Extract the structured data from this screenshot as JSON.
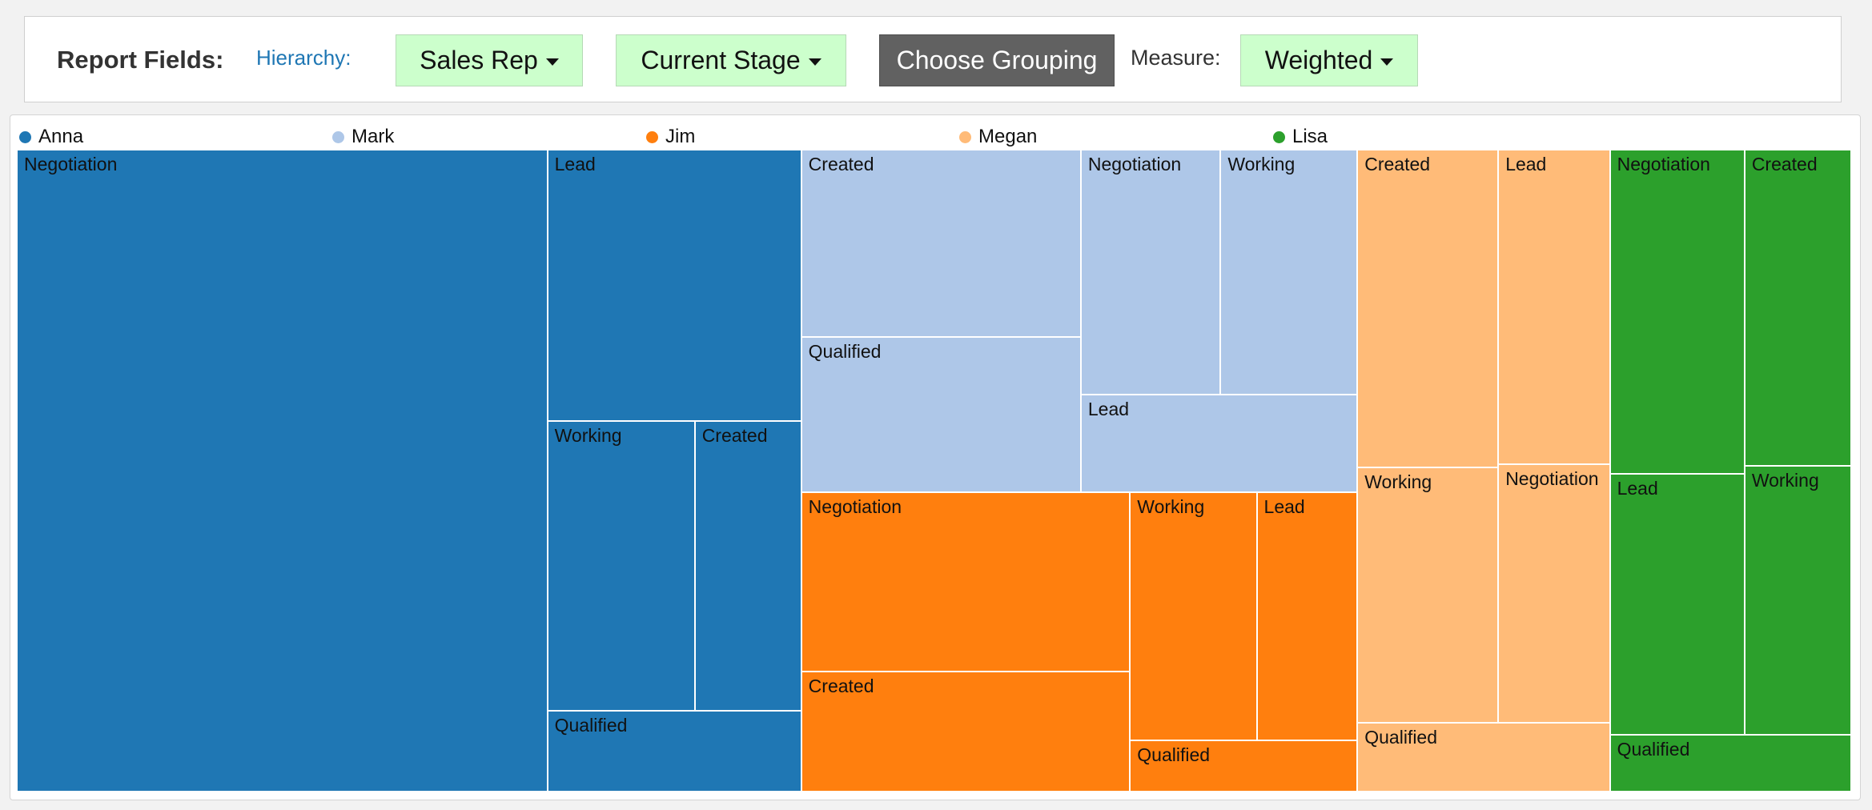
{
  "toolbar": {
    "report_fields_label": "Report Fields:",
    "hierarchy_label": "Hierarchy:",
    "hierarchy_buttons": [
      "Sales Rep",
      "Current Stage"
    ],
    "choose_grouping_label": "Choose Grouping",
    "measure_label": "Measure:",
    "measure_value": "Weighted"
  },
  "chart_data": {
    "type": "treemap",
    "legend_placement": "top",
    "hierarchy": [
      "Sales Rep",
      "Current Stage"
    ],
    "measure": "Weighted",
    "series": [
      {
        "name": "Anna",
        "color": "#1f77b4",
        "children": [
          {
            "name": "Negotiation",
            "value": 0.195
          },
          {
            "name": "Lead",
            "value": 0.0394
          },
          {
            "name": "Working",
            "value": 0.0245
          },
          {
            "name": "Created",
            "value": 0.0177
          },
          {
            "name": "Qualified",
            "value": 0.0117
          }
        ]
      },
      {
        "name": "Mark",
        "color": "#aec7e8",
        "children": [
          {
            "name": "Created",
            "value": 0.03
          },
          {
            "name": "Qualified",
            "value": 0.0248
          },
          {
            "name": "Negotiation",
            "value": 0.0196
          },
          {
            "name": "Working",
            "value": 0.0192
          },
          {
            "name": "Lead",
            "value": 0.0154
          }
        ]
      },
      {
        "name": "Jim",
        "color": "#ff7f0e",
        "children": [
          {
            "name": "Negotiation",
            "value": 0.0338
          },
          {
            "name": "Created",
            "value": 0.0226
          },
          {
            "name": "Working",
            "value": 0.018
          },
          {
            "name": "Lead",
            "value": 0.0143
          },
          {
            "name": "Qualified",
            "value": 0.0067
          }
        ]
      },
      {
        "name": "Megan",
        "color": "#ffbb78",
        "children": [
          {
            "name": "Created",
            "value": 0.0256
          },
          {
            "name": "Working",
            "value": 0.0206
          },
          {
            "name": "Lead",
            "value": 0.0201
          },
          {
            "name": "Negotiation",
            "value": 0.0165
          },
          {
            "name": "Qualified",
            "value": 0.01
          }
        ]
      },
      {
        "name": "Lisa",
        "color": "#2ca02c",
        "children": [
          {
            "name": "Negotiation",
            "value": 0.025
          },
          {
            "name": "Lead",
            "value": 0.0201
          },
          {
            "name": "Created",
            "value": 0.0193
          },
          {
            "name": "Working",
            "value": 0.0164
          },
          {
            "name": "Qualified",
            "value": 0.0079
          }
        ]
      }
    ]
  }
}
